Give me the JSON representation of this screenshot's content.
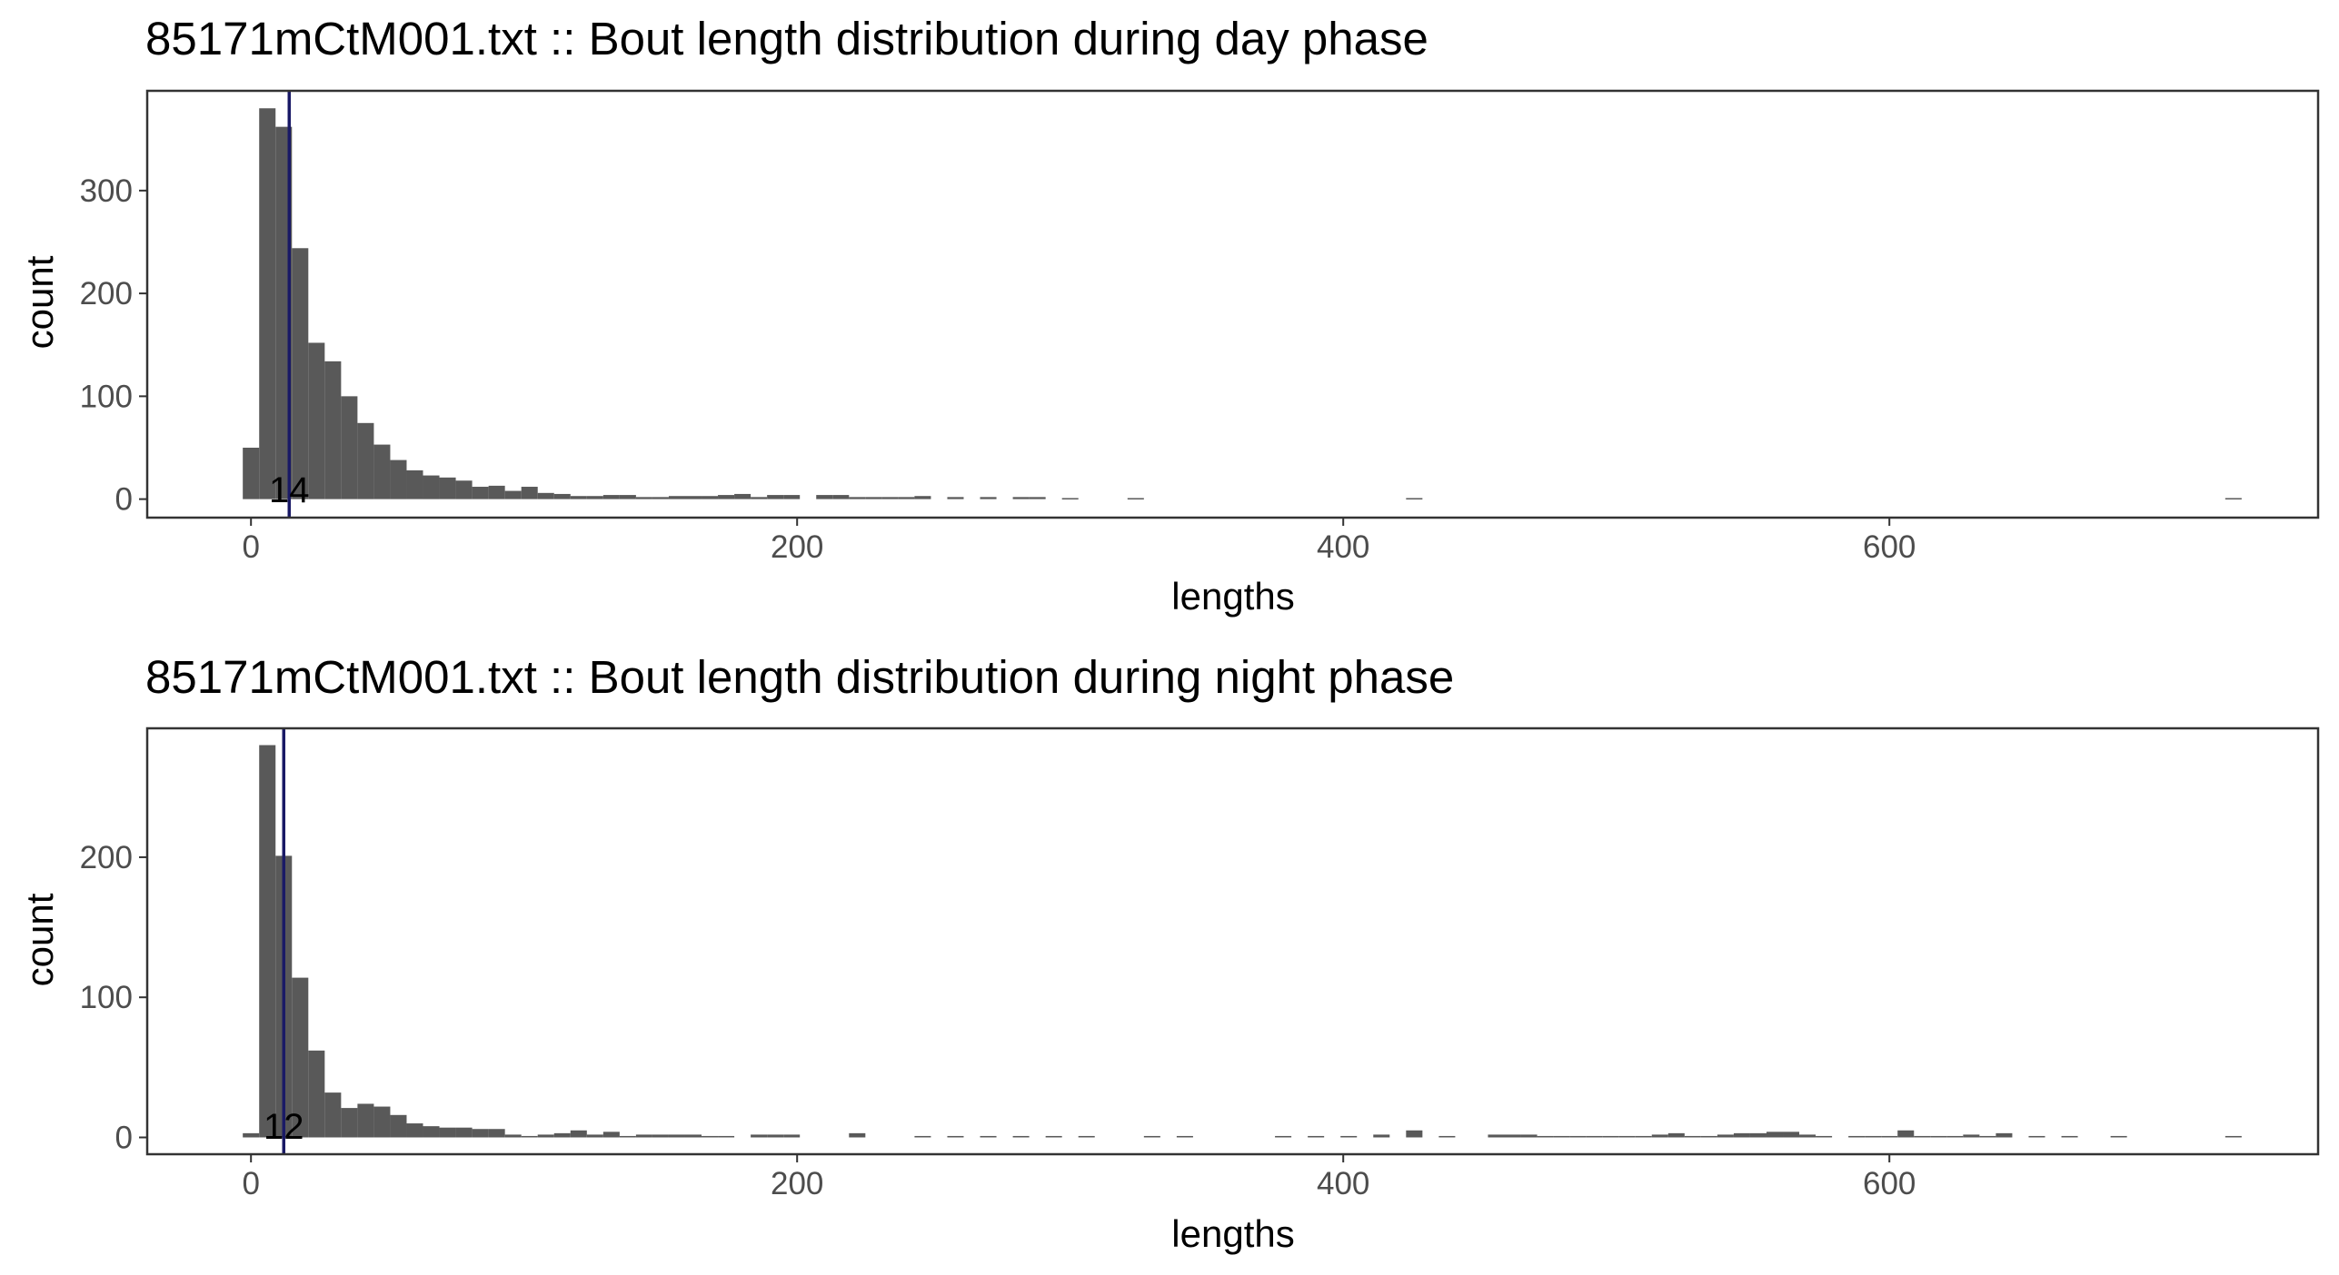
{
  "chart_data": [
    {
      "type": "bar",
      "title": "85171mCtM001.txt :: Bout length distribution during day phase",
      "xlabel": "lengths",
      "ylabel": "count",
      "xlim": [
        -38,
        757
      ],
      "ylim": [
        -18,
        397
      ],
      "x_ticks": [
        0,
        200,
        400,
        600
      ],
      "y_ticks": [
        0,
        100,
        200,
        300
      ],
      "bin_width": 6,
      "grid": false,
      "bar_color": "#595959",
      "line_color": "#1a1a66",
      "vline": {
        "x": 14,
        "label": "14"
      },
      "bins": [
        {
          "x": 0,
          "count": 50
        },
        {
          "x": 6,
          "count": 380
        },
        {
          "x": 12,
          "count": 362
        },
        {
          "x": 18,
          "count": 244
        },
        {
          "x": 24,
          "count": 152
        },
        {
          "x": 30,
          "count": 134
        },
        {
          "x": 36,
          "count": 100
        },
        {
          "x": 42,
          "count": 74
        },
        {
          "x": 48,
          "count": 53
        },
        {
          "x": 54,
          "count": 38
        },
        {
          "x": 60,
          "count": 28
        },
        {
          "x": 66,
          "count": 23
        },
        {
          "x": 72,
          "count": 21
        },
        {
          "x": 78,
          "count": 18
        },
        {
          "x": 84,
          "count": 12
        },
        {
          "x": 90,
          "count": 13
        },
        {
          "x": 96,
          "count": 8
        },
        {
          "x": 102,
          "count": 12
        },
        {
          "x": 108,
          "count": 6
        },
        {
          "x": 114,
          "count": 5
        },
        {
          "x": 120,
          "count": 3
        },
        {
          "x": 126,
          "count": 3
        },
        {
          "x": 132,
          "count": 4
        },
        {
          "x": 138,
          "count": 4
        },
        {
          "x": 144,
          "count": 2
        },
        {
          "x": 150,
          "count": 2
        },
        {
          "x": 156,
          "count": 3
        },
        {
          "x": 162,
          "count": 3
        },
        {
          "x": 168,
          "count": 3
        },
        {
          "x": 174,
          "count": 4
        },
        {
          "x": 180,
          "count": 5
        },
        {
          "x": 186,
          "count": 2
        },
        {
          "x": 192,
          "count": 4
        },
        {
          "x": 198,
          "count": 4
        },
        {
          "x": 210,
          "count": 4
        },
        {
          "x": 216,
          "count": 4
        },
        {
          "x": 222,
          "count": 2
        },
        {
          "x": 228,
          "count": 2
        },
        {
          "x": 234,
          "count": 2
        },
        {
          "x": 240,
          "count": 2
        },
        {
          "x": 246,
          "count": 3
        },
        {
          "x": 258,
          "count": 2
        },
        {
          "x": 270,
          "count": 2
        },
        {
          "x": 282,
          "count": 2
        },
        {
          "x": 288,
          "count": 2
        },
        {
          "x": 300,
          "count": 1
        },
        {
          "x": 324,
          "count": 1
        },
        {
          "x": 426,
          "count": 1
        },
        {
          "x": 726,
          "count": 1
        }
      ]
    },
    {
      "type": "bar",
      "title": "85171mCtM001.txt :: Bout length distribution during night phase",
      "xlabel": "lengths",
      "ylabel": "count",
      "xlim": [
        -38,
        757
      ],
      "ylim": [
        -12,
        292
      ],
      "x_ticks": [
        0,
        200,
        400,
        600
      ],
      "y_ticks": [
        0,
        100,
        200
      ],
      "bin_width": 6,
      "grid": false,
      "bar_color": "#595959",
      "line_color": "#1a1a66",
      "vline": {
        "x": 12,
        "label": "12"
      },
      "bins": [
        {
          "x": 0,
          "count": 3
        },
        {
          "x": 6,
          "count": 280
        },
        {
          "x": 12,
          "count": 201
        },
        {
          "x": 18,
          "count": 114
        },
        {
          "x": 24,
          "count": 62
        },
        {
          "x": 30,
          "count": 32
        },
        {
          "x": 36,
          "count": 21
        },
        {
          "x": 42,
          "count": 24
        },
        {
          "x": 48,
          "count": 22
        },
        {
          "x": 54,
          "count": 16
        },
        {
          "x": 60,
          "count": 10
        },
        {
          "x": 66,
          "count": 8
        },
        {
          "x": 72,
          "count": 7
        },
        {
          "x": 78,
          "count": 7
        },
        {
          "x": 84,
          "count": 6
        },
        {
          "x": 90,
          "count": 6
        },
        {
          "x": 96,
          "count": 2
        },
        {
          "x": 102,
          "count": 1
        },
        {
          "x": 108,
          "count": 2
        },
        {
          "x": 114,
          "count": 3
        },
        {
          "x": 120,
          "count": 5
        },
        {
          "x": 126,
          "count": 2
        },
        {
          "x": 132,
          "count": 4
        },
        {
          "x": 138,
          "count": 1
        },
        {
          "x": 144,
          "count": 2
        },
        {
          "x": 150,
          "count": 2
        },
        {
          "x": 156,
          "count": 2
        },
        {
          "x": 162,
          "count": 2
        },
        {
          "x": 168,
          "count": 1
        },
        {
          "x": 174,
          "count": 1
        },
        {
          "x": 186,
          "count": 2
        },
        {
          "x": 192,
          "count": 2
        },
        {
          "x": 198,
          "count": 2
        },
        {
          "x": 222,
          "count": 3
        },
        {
          "x": 246,
          "count": 1
        },
        {
          "x": 258,
          "count": 1
        },
        {
          "x": 270,
          "count": 1
        },
        {
          "x": 282,
          "count": 1
        },
        {
          "x": 294,
          "count": 1
        },
        {
          "x": 306,
          "count": 1
        },
        {
          "x": 330,
          "count": 1
        },
        {
          "x": 342,
          "count": 1
        },
        {
          "x": 378,
          "count": 1
        },
        {
          "x": 390,
          "count": 1
        },
        {
          "x": 402,
          "count": 1
        },
        {
          "x": 414,
          "count": 2
        },
        {
          "x": 426,
          "count": 5
        },
        {
          "x": 438,
          "count": 1
        },
        {
          "x": 456,
          "count": 2
        },
        {
          "x": 462,
          "count": 2
        },
        {
          "x": 468,
          "count": 2
        },
        {
          "x": 474,
          "count": 1
        },
        {
          "x": 480,
          "count": 1
        },
        {
          "x": 486,
          "count": 1
        },
        {
          "x": 492,
          "count": 1
        },
        {
          "x": 498,
          "count": 1
        },
        {
          "x": 504,
          "count": 1
        },
        {
          "x": 510,
          "count": 1
        },
        {
          "x": 516,
          "count": 2
        },
        {
          "x": 522,
          "count": 3
        },
        {
          "x": 528,
          "count": 1
        },
        {
          "x": 534,
          "count": 1
        },
        {
          "x": 540,
          "count": 2
        },
        {
          "x": 546,
          "count": 3
        },
        {
          "x": 552,
          "count": 3
        },
        {
          "x": 558,
          "count": 4
        },
        {
          "x": 564,
          "count": 4
        },
        {
          "x": 570,
          "count": 2
        },
        {
          "x": 576,
          "count": 1
        },
        {
          "x": 588,
          "count": 1
        },
        {
          "x": 594,
          "count": 1
        },
        {
          "x": 600,
          "count": 1
        },
        {
          "x": 606,
          "count": 5
        },
        {
          "x": 612,
          "count": 1
        },
        {
          "x": 618,
          "count": 1
        },
        {
          "x": 624,
          "count": 1
        },
        {
          "x": 630,
          "count": 2
        },
        {
          "x": 636,
          "count": 1
        },
        {
          "x": 642,
          "count": 3
        },
        {
          "x": 654,
          "count": 1
        },
        {
          "x": 666,
          "count": 1
        },
        {
          "x": 684,
          "count": 1
        },
        {
          "x": 726,
          "count": 1
        }
      ]
    }
  ]
}
